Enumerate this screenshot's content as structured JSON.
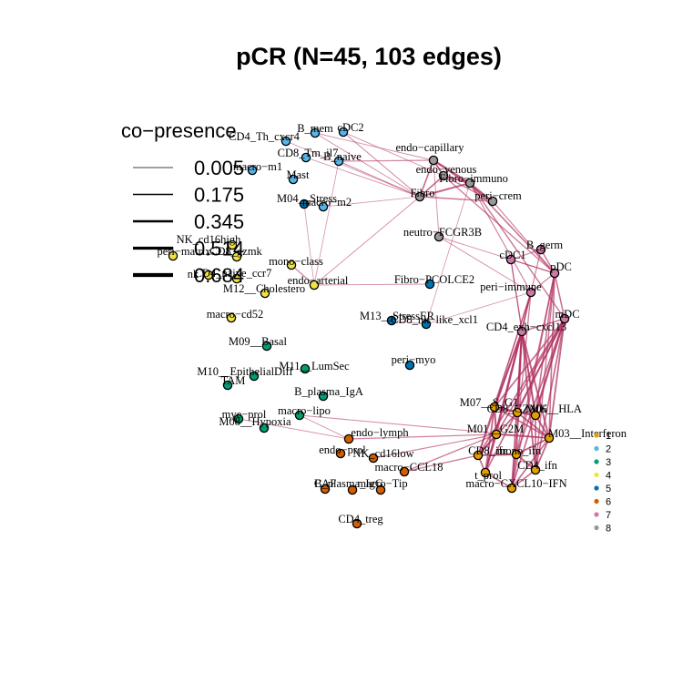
{
  "chart_data": {
    "type": "network",
    "title": "pCR (N=45, 103 edges)",
    "edge_legend": {
      "title": "co−presence",
      "values": [
        "0.005",
        "0.175",
        "0.345",
        "0.514",
        "0.684"
      ]
    },
    "cluster_legend": {
      "clusters": [
        {
          "id": "1",
          "color": "#E69F00"
        },
        {
          "id": "2",
          "color": "#56B4E9"
        },
        {
          "id": "3",
          "color": "#009E73"
        },
        {
          "id": "4",
          "color": "#F0E442"
        },
        {
          "id": "5",
          "color": "#0072B2"
        },
        {
          "id": "6",
          "color": "#D55E00"
        },
        {
          "id": "7",
          "color": "#CC79A7"
        },
        {
          "id": "8",
          "color": "#999999"
        }
      ]
    },
    "edge_color": "#B03060",
    "nodes": [
      {
        "label": "B_mem",
        "cluster": "2"
      },
      {
        "label": "cDC2",
        "cluster": "2"
      },
      {
        "label": "CD4_Th_cxcr4",
        "cluster": "2"
      },
      {
        "label": "CD8_Tm_il7",
        "cluster": "2"
      },
      {
        "label": "B_naive",
        "cluster": "2"
      },
      {
        "label": "macro−m1",
        "cluster": "2"
      },
      {
        "label": "Mast",
        "cluster": "2"
      },
      {
        "label": "M04__Stress",
        "cluster": "5"
      },
      {
        "label": "macro−m2",
        "cluster": "2"
      },
      {
        "label": "endo−capillary",
        "cluster": "8"
      },
      {
        "label": "endo−venous",
        "cluster": "8"
      },
      {
        "label": "Fibro−immuno",
        "cluster": "8"
      },
      {
        "label": "Fibro",
        "cluster": "8"
      },
      {
        "label": "peri−crem",
        "cluster": "8"
      },
      {
        "label": "neutro−FCGR3B",
        "cluster": "8"
      },
      {
        "label": "B_germ",
        "cluster": "7"
      },
      {
        "label": "cDC1",
        "cluster": "7"
      },
      {
        "label": "pDC",
        "cluster": "7"
      },
      {
        "label": "peri−immune",
        "cluster": "7"
      },
      {
        "label": "mDC",
        "cluster": "7"
      },
      {
        "label": "CD4_exh−cxcl13",
        "cluster": "7"
      },
      {
        "label": "NK_cd16high",
        "cluster": "4"
      },
      {
        "label": "peri−matrix",
        "cluster": "4"
      },
      {
        "label": "CD8_gzmk",
        "cluster": "4"
      },
      {
        "label": "mono−class",
        "cluster": "4"
      },
      {
        "label": "nk",
        "cluster": "4"
      },
      {
        "label": "CD4_naive_ccr7",
        "cluster": "4"
      },
      {
        "label": "endo−arterial",
        "cluster": "4"
      },
      {
        "label": "M12__Cholestero",
        "cluster": "4"
      },
      {
        "label": "Fibro−PCOLCE2",
        "cluster": "5"
      },
      {
        "label": "macro−cd52",
        "cluster": "4"
      },
      {
        "label": "M13__StressER",
        "cluster": "5"
      },
      {
        "label": "CD8_nk−like_xcl1",
        "cluster": "5"
      },
      {
        "label": "M09__Basal",
        "cluster": "3"
      },
      {
        "label": "M11__LumSec",
        "cluster": "3"
      },
      {
        "label": "M10__EpithelialDiff",
        "cluster": "3"
      },
      {
        "label": "TAM",
        "cluster": "3"
      },
      {
        "label": "peri−myo",
        "cluster": "5"
      },
      {
        "label": "B_plasma_IgA",
        "cluster": "3"
      },
      {
        "label": "mye−prol",
        "cluster": "3"
      },
      {
        "label": "macro−lipo",
        "cluster": "3"
      },
      {
        "label": "M08__Hypoxia",
        "cluster": "3"
      },
      {
        "label": "M07__S_G1",
        "cluster": "1"
      },
      {
        "label": "CD8_GZMK",
        "cluster": "1"
      },
      {
        "label": "M06__HLA",
        "cluster": "1"
      },
      {
        "label": "M01__G2M",
        "cluster": "1"
      },
      {
        "label": "M03__Interferon",
        "cluster": "1"
      },
      {
        "label": "endo−lymph",
        "cluster": "6"
      },
      {
        "label": "endo−prol",
        "cluster": "6"
      },
      {
        "label": "NK_cd16low",
        "cluster": "6"
      },
      {
        "label": "macro−CCL18",
        "cluster": "6"
      },
      {
        "label": "CD8_ifn",
        "cluster": "1"
      },
      {
        "label": "mono_ifn",
        "cluster": "1"
      },
      {
        "label": "CD4_ifn",
        "cluster": "1"
      },
      {
        "label": "t_prol",
        "cluster": "1"
      },
      {
        "label": "macro−CXCL10−IFN",
        "cluster": "1"
      },
      {
        "label": "CAF",
        "cluster": "6"
      },
      {
        "label": "B_plasma_IgG",
        "cluster": "6"
      },
      {
        "label": "macro−Tip",
        "cluster": "6"
      },
      {
        "label": "CD4_treg",
        "cluster": "6"
      }
    ],
    "edges": [
      {
        "source": "endo−capillary",
        "target": "Fibro−immuno",
        "weight": 0.6
      },
      {
        "source": "endo−capillary",
        "target": "Fibro",
        "weight": 0.5
      },
      {
        "source": "endo−capillary",
        "target": "endo−venous",
        "weight": 0.6
      },
      {
        "source": "endo−capillary",
        "target": "peri−crem",
        "weight": 0.5
      },
      {
        "source": "endo−venous",
        "target": "Fibro−immuno",
        "weight": 0.6
      },
      {
        "source": "endo−venous",
        "target": "Fibro",
        "weight": 0.5
      },
      {
        "source": "endo−venous",
        "target": "peri−crem",
        "weight": 0.4
      },
      {
        "source": "Fibro−immuno",
        "target": "Fibro",
        "weight": 0.6
      },
      {
        "source": "Fibro−immuno",
        "target": "peri−crem",
        "weight": 0.5
      },
      {
        "source": "Fibro",
        "target": "peri−crem",
        "weight": 0.4
      },
      {
        "source": "B_naive",
        "target": "endo−capillary",
        "weight": 0.3
      },
      {
        "source": "B_naive",
        "target": "Fibro",
        "weight": 0.25
      },
      {
        "source": "B_mem",
        "target": "endo−capillary",
        "weight": 0.2
      },
      {
        "source": "B_mem",
        "target": "Fibro",
        "weight": 0.2
      },
      {
        "source": "cDC2",
        "target": "Fibro",
        "weight": 0.25
      },
      {
        "source": "cDC2",
        "target": "endo−venous",
        "weight": 0.2
      },
      {
        "source": "CD4_Th_cxcr4",
        "target": "Fibro",
        "weight": 0.15
      },
      {
        "source": "CD8_Tm_il7",
        "target": "Fibro",
        "weight": 0.2
      },
      {
        "source": "macro−m2",
        "target": "Fibro",
        "weight": 0.15
      },
      {
        "source": "Fibro−immuno",
        "target": "pDC",
        "weight": 0.45
      },
      {
        "source": "Fibro−immuno",
        "target": "mDC",
        "weight": 0.4
      },
      {
        "source": "Fibro−immuno",
        "target": "peri−immune",
        "weight": 0.3
      },
      {
        "source": "endo−venous",
        "target": "pDC",
        "weight": 0.35
      },
      {
        "source": "peri−crem",
        "target": "pDC",
        "weight": 0.3
      },
      {
        "source": "B_germ",
        "target": "cDC1",
        "weight": 0.3
      },
      {
        "source": "B_germ",
        "target": "pDC",
        "weight": 0.4
      },
      {
        "source": "cDC1",
        "target": "pDC",
        "weight": 0.3
      },
      {
        "source": "pDC",
        "target": "mDC",
        "weight": 0.45
      },
      {
        "source": "pDC",
        "target": "peri−immune",
        "weight": 0.3
      },
      {
        "source": "mDC",
        "target": "CD4_exh−cxcl13",
        "weight": 0.4
      },
      {
        "source": "peri−immune",
        "target": "CD4_exh−cxcl13",
        "weight": 0.35
      },
      {
        "source": "neutro−FCGR3B",
        "target": "pDC",
        "weight": 0.2
      },
      {
        "source": "neutro−FCGR3B",
        "target": "endo−capillary",
        "weight": 0.2
      },
      {
        "source": "neutro−FCGR3B",
        "target": "peri−immune",
        "weight": 0.2
      },
      {
        "source": "mono−class",
        "target": "endo−arterial",
        "weight": 0.3
      },
      {
        "source": "endo−arterial",
        "target": "Fibro−PCOLCE2",
        "weight": 0.2
      },
      {
        "source": "endo−arterial",
        "target": "M04__Stress",
        "weight": 0.15
      },
      {
        "source": "endo−arterial",
        "target": "B_naive",
        "weight": 0.15
      },
      {
        "source": "endo−arterial",
        "target": "Fibro",
        "weight": 0.2
      },
      {
        "source": "M13__StressER",
        "target": "CD8_nk−like_xcl1",
        "weight": 0.2
      },
      {
        "source": "CD8_nk−like_xcl1",
        "target": "Fibro−immuno",
        "weight": 0.15
      },
      {
        "source": "CD8_nk−like_xcl1",
        "target": "peri−immune",
        "weight": 0.15
      },
      {
        "source": "macro−lipo",
        "target": "M03__Interferon",
        "weight": 0.25
      },
      {
        "source": "macro−lipo",
        "target": "endo−lymph",
        "weight": 0.2
      },
      {
        "source": "mye−prol",
        "target": "endo−lymph",
        "weight": 0.2
      },
      {
        "source": "mDC",
        "target": "M07__S_G1",
        "weight": 0.5
      },
      {
        "source": "mDC",
        "target": "CD8_GZMK",
        "weight": 0.5
      },
      {
        "source": "mDC",
        "target": "M06__HLA",
        "weight": 0.55
      },
      {
        "source": "mDC",
        "target": "M01__G2M",
        "weight": 0.5
      },
      {
        "source": "mDC",
        "target": "M03__Interferon",
        "weight": 0.55
      },
      {
        "source": "mDC",
        "target": "CD8_ifn",
        "weight": 0.5
      },
      {
        "source": "mDC",
        "target": "mono_ifn",
        "weight": 0.5
      },
      {
        "source": "mDC",
        "target": "CD4_ifn",
        "weight": 0.5
      },
      {
        "source": "mDC",
        "target": "t_prol",
        "weight": 0.5
      },
      {
        "source": "mDC",
        "target": "macro−CXCL10−IFN",
        "weight": 0.5
      },
      {
        "source": "pDC",
        "target": "M06__HLA",
        "weight": 0.45
      },
      {
        "source": "pDC",
        "target": "M03__Interferon",
        "weight": 0.45
      },
      {
        "source": "pDC",
        "target": "CD4_ifn",
        "weight": 0.4
      },
      {
        "source": "pDC",
        "target": "mono_ifn",
        "weight": 0.4
      },
      {
        "source": "pDC",
        "target": "macro−CXCL10−IFN",
        "weight": 0.4
      },
      {
        "source": "peri−immune",
        "target": "M07__S_G1",
        "weight": 0.35
      },
      {
        "source": "peri−immune",
        "target": "CD8_ifn",
        "weight": 0.35
      },
      {
        "source": "peri−immune",
        "target": "t_prol",
        "weight": 0.35
      },
      {
        "source": "peri−immune",
        "target": "macro−CXCL10−IFN",
        "weight": 0.35
      },
      {
        "source": "CD4_exh−cxcl13",
        "target": "M07__S_G1",
        "weight": 0.55
      },
      {
        "source": "CD4_exh−cxcl13",
        "target": "CD8_GZMK",
        "weight": 0.6
      },
      {
        "source": "CD4_exh−cxcl13",
        "target": "M06__HLA",
        "weight": 0.6
      },
      {
        "source": "CD4_exh−cxcl13",
        "target": "M01__G2M",
        "weight": 0.55
      },
      {
        "source": "CD4_exh−cxcl13",
        "target": "M03__Interferon",
        "weight": 0.6
      },
      {
        "source": "CD4_exh−cxcl13",
        "target": "CD8_ifn",
        "weight": 0.55
      },
      {
        "source": "CD4_exh−cxcl13",
        "target": "mono_ifn",
        "weight": 0.55
      },
      {
        "source": "CD4_exh−cxcl13",
        "target": "CD4_ifn",
        "weight": 0.55
      },
      {
        "source": "CD4_exh−cxcl13",
        "target": "t_prol",
        "weight": 0.55
      },
      {
        "source": "CD4_exh−cxcl13",
        "target": "macro−CXCL10−IFN",
        "weight": 0.55
      },
      {
        "source": "cDC1",
        "target": "M06__HLA",
        "weight": 0.3
      },
      {
        "source": "cDC1",
        "target": "CD4_exh−cxcl13",
        "weight": 0.3
      },
      {
        "source": "B_germ",
        "target": "CD4_exh−cxcl13",
        "weight": 0.3
      },
      {
        "source": "M07__S_G1",
        "target": "CD8_GZMK",
        "weight": 0.6
      },
      {
        "source": "M07__S_G1",
        "target": "M06__HLA",
        "weight": 0.55
      },
      {
        "source": "M07__S_G1",
        "target": "M01__G2M",
        "weight": 0.65
      },
      {
        "source": "M07__S_G1",
        "target": "M03__Interferon",
        "weight": 0.5
      },
      {
        "source": "M07__S_G1",
        "target": "t_prol",
        "weight": 0.55
      },
      {
        "source": "CD8_GZMK",
        "target": "M06__HLA",
        "weight": 0.6
      },
      {
        "source": "CD8_GZMK",
        "target": "M03__Interferon",
        "weight": 0.55
      },
      {
        "source": "CD8_GZMK",
        "target": "CD8_ifn",
        "weight": 0.55
      },
      {
        "source": "M06__HLA",
        "target": "M03__Interferon",
        "weight": 0.6
      },
      {
        "source": "M06__HLA",
        "target": "CD4_ifn",
        "weight": 0.5
      },
      {
        "source": "M01__G2M",
        "target": "M03__Interferon",
        "weight": 0.5
      },
      {
        "source": "M01__G2M",
        "target": "t_prol",
        "weight": 0.6
      },
      {
        "source": "M01__G2M",
        "target": "CD8_ifn",
        "weight": 0.5
      },
      {
        "source": "M03__Interferon",
        "target": "mono_ifn",
        "weight": 0.55
      },
      {
        "source": "M03__Interferon",
        "target": "CD4_ifn",
        "weight": 0.55
      },
      {
        "source": "M03__Interferon",
        "target": "macro−CXCL10−IFN",
        "weight": 0.5
      },
      {
        "source": "CD8_ifn",
        "target": "mono_ifn",
        "weight": 0.6
      },
      {
        "source": "CD8_ifn",
        "target": "t_prol",
        "weight": 0.5
      },
      {
        "source": "mono_ifn",
        "target": "CD4_ifn",
        "weight": 0.55
      },
      {
        "source": "mono_ifn",
        "target": "macro−CXCL10−IFN",
        "weight": 0.55
      },
      {
        "source": "CD4_ifn",
        "target": "macro−CXCL10−IFN",
        "weight": 0.5
      },
      {
        "source": "t_prol",
        "target": "macro−CXCL10−IFN",
        "weight": 0.5
      },
      {
        "source": "macro−CCL18",
        "target": "M01__G2M",
        "weight": 0.35
      },
      {
        "source": "macro−CCL18",
        "target": "CD8_ifn",
        "weight": 0.35
      },
      {
        "source": "NK_cd16low",
        "target": "M01__G2M",
        "weight": 0.3
      },
      {
        "source": "endo−lymph",
        "target": "M01__G2M",
        "weight": 0.3
      }
    ]
  }
}
